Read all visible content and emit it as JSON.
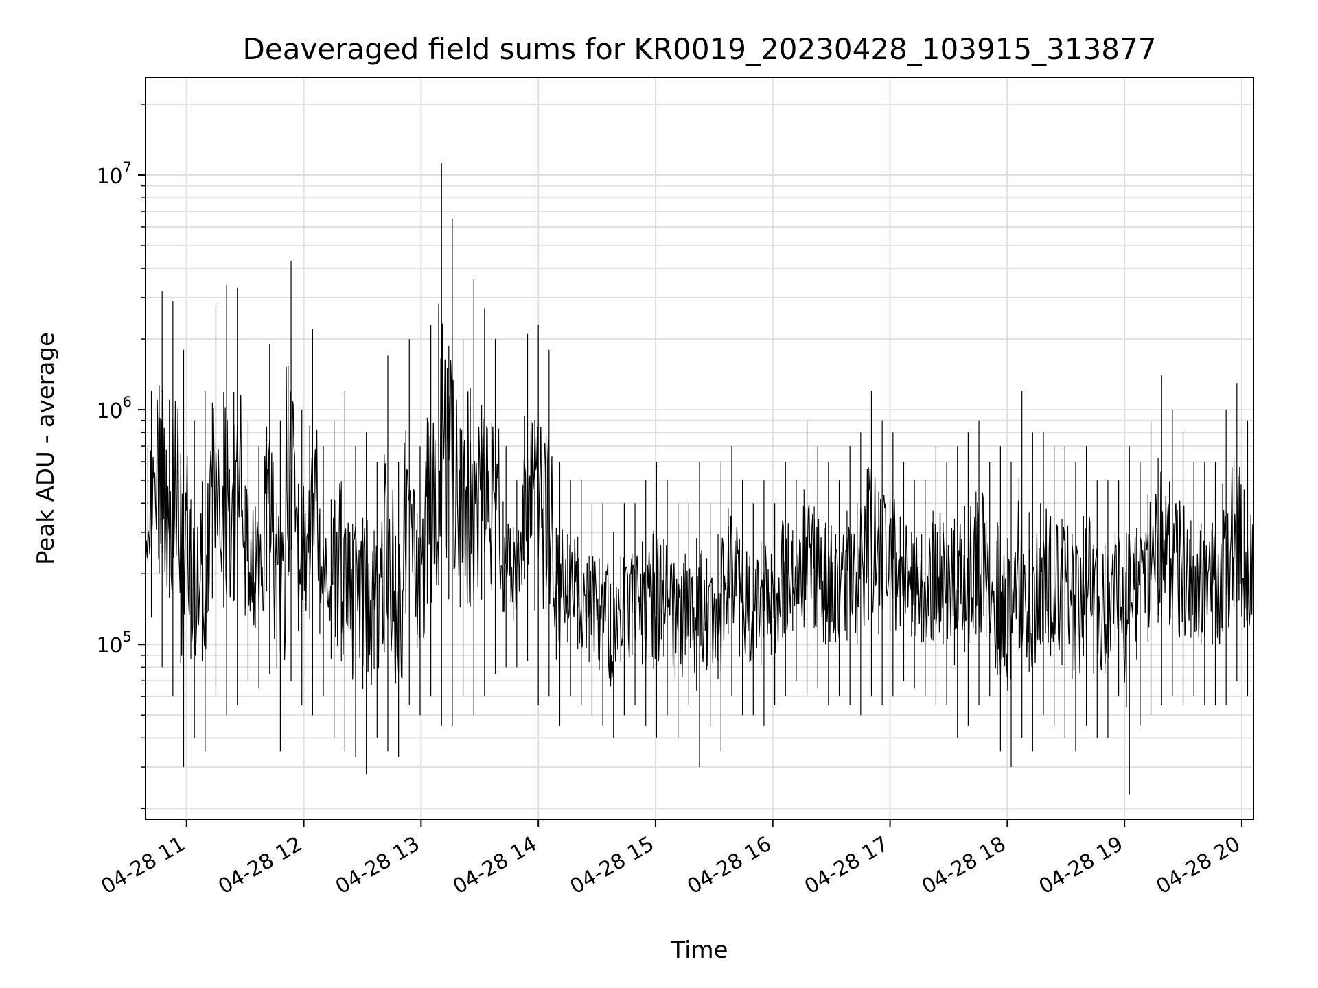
{
  "chart_data": {
    "type": "line",
    "title": "Deaveraged field sums for KR0019_20230428_103915_313877",
    "xlabel": "Time",
    "ylabel": "Peak ADU - average",
    "y_scale": "log",
    "ylim": [
      18000,
      26000000
    ],
    "xlim": [
      "2023-04-28 10:39",
      "2023-04-28 20:06"
    ],
    "grid": true,
    "line_color": "#000000",
    "grid_color": "#e0e0e0",
    "x_ticks": [
      {
        "time": "2023-04-28 11:00",
        "label": "04-28 11"
      },
      {
        "time": "2023-04-28 12:00",
        "label": "04-28 12"
      },
      {
        "time": "2023-04-28 13:00",
        "label": "04-28 13"
      },
      {
        "time": "2023-04-28 14:00",
        "label": "04-28 14"
      },
      {
        "time": "2023-04-28 15:00",
        "label": "04-28 15"
      },
      {
        "time": "2023-04-28 16:00",
        "label": "04-28 16"
      },
      {
        "time": "2023-04-28 17:00",
        "label": "04-28 17"
      },
      {
        "time": "2023-04-28 18:00",
        "label": "04-28 18"
      },
      {
        "time": "2023-04-28 19:00",
        "label": "04-28 19"
      },
      {
        "time": "2023-04-28 20:00",
        "label": "04-28 20"
      }
    ],
    "y_ticks": [
      {
        "value": 100000,
        "base": "10",
        "exp": "5"
      },
      {
        "value": 1000000,
        "base": "10",
        "exp": "6"
      },
      {
        "value": 10000000,
        "base": "10",
        "exp": "7"
      }
    ],
    "series": [
      {
        "x": [
          "2023-04-28 10:39",
          "2023-04-28 10:45",
          "2023-04-28 10:50",
          "2023-04-28 10:56",
          "2023-04-28 11:01",
          "2023-04-28 11:07",
          "2023-04-28 11:12",
          "2023-04-28 11:18",
          "2023-04-28 11:23",
          "2023-04-28 11:29",
          "2023-04-28 11:34",
          "2023-04-28 11:40",
          "2023-04-28 11:45",
          "2023-04-28 11:51",
          "2023-04-28 11:56",
          "2023-04-28 12:02",
          "2023-04-28 12:07",
          "2023-04-28 12:13",
          "2023-04-28 12:18",
          "2023-04-28 12:24",
          "2023-04-28 12:29",
          "2023-04-28 12:35",
          "2023-04-28 12:40",
          "2023-04-28 12:46",
          "2023-04-28 12:51",
          "2023-04-28 12:57",
          "2023-04-28 13:02",
          "2023-04-28 13:08",
          "2023-04-28 13:13",
          "2023-04-28 13:19",
          "2023-04-28 13:24",
          "2023-04-28 13:30",
          "2023-04-28 13:35",
          "2023-04-28 13:41",
          "2023-04-28 13:46",
          "2023-04-28 13:52",
          "2023-04-28 13:57",
          "2023-04-28 14:03",
          "2023-04-28 14:08",
          "2023-04-28 14:14",
          "2023-04-28 14:19",
          "2023-04-28 14:25",
          "2023-04-28 14:30",
          "2023-04-28 14:36",
          "2023-04-28 14:41",
          "2023-04-28 14:47",
          "2023-04-28 14:52",
          "2023-04-28 14:58",
          "2023-04-28 15:03",
          "2023-04-28 15:09",
          "2023-04-28 15:14",
          "2023-04-28 15:20",
          "2023-04-28 15:25",
          "2023-04-28 15:31",
          "2023-04-28 15:36",
          "2023-04-28 15:42",
          "2023-04-28 15:47",
          "2023-04-28 15:53",
          "2023-04-28 15:58",
          "2023-04-28 16:04",
          "2023-04-28 16:09",
          "2023-04-28 16:15",
          "2023-04-28 16:20",
          "2023-04-28 16:26",
          "2023-04-28 16:31",
          "2023-04-28 16:37",
          "2023-04-28 16:42",
          "2023-04-28 16:48",
          "2023-04-28 16:53",
          "2023-04-28 16:59",
          "2023-04-28 17:04",
          "2023-04-28 17:10",
          "2023-04-28 17:15",
          "2023-04-28 17:21",
          "2023-04-28 17:26",
          "2023-04-28 17:32",
          "2023-04-28 17:37",
          "2023-04-28 17:43",
          "2023-04-28 17:48",
          "2023-04-28 17:54",
          "2023-04-28 17:59",
          "2023-04-28 18:05",
          "2023-04-28 18:10",
          "2023-04-28 18:16",
          "2023-04-28 18:21",
          "2023-04-28 18:27",
          "2023-04-28 18:32",
          "2023-04-28 18:38",
          "2023-04-28 18:43",
          "2023-04-28 18:49",
          "2023-04-28 18:54",
          "2023-04-28 19:00",
          "2023-04-28 19:05",
          "2023-04-28 19:11",
          "2023-04-28 19:16",
          "2023-04-28 19:22",
          "2023-04-28 19:27",
          "2023-04-28 19:33",
          "2023-04-28 19:38",
          "2023-04-28 19:44",
          "2023-04-28 19:49",
          "2023-04-28 19:55",
          "2023-04-28 20:00",
          "2023-04-28 20:06"
        ],
        "y_max": [
          1200000,
          3200000,
          2900000,
          1800000,
          900000,
          1200000,
          2800000,
          3400000,
          3300000,
          900000,
          700000,
          1900000,
          900000,
          4300000,
          1000000,
          2200000,
          700000,
          900000,
          1200000,
          700000,
          800000,
          600000,
          1700000,
          600000,
          2000000,
          700000,
          2300000,
          11200000,
          6500000,
          2000000,
          3600000,
          2700000,
          2000000,
          700000,
          500000,
          2100000,
          2300000,
          1800000,
          600000,
          500000,
          500000,
          400000,
          400000,
          300000,
          400000,
          400000,
          500000,
          600000,
          500000,
          400000,
          400000,
          600000,
          400000,
          600000,
          700000,
          500000,
          400000,
          500000,
          400000,
          600000,
          500000,
          900000,
          700000,
          600000,
          500000,
          700000,
          800000,
          1200000,
          900000,
          800000,
          600000,
          500000,
          500000,
          700000,
          600000,
          700000,
          800000,
          900000,
          600000,
          700000,
          600000,
          1200000,
          800000,
          800000,
          700000,
          700000,
          600000,
          700000,
          500000,
          500000,
          500000,
          700000,
          600000,
          900000,
          1400000,
          1000000,
          800000,
          600000,
          600000,
          600000,
          1000000,
          1300000,
          900000,
          800000
        ],
        "y_min": [
          130000,
          80000,
          60000,
          30000,
          40000,
          35000,
          60000,
          50000,
          55000,
          70000,
          65000,
          75000,
          35000,
          70000,
          55000,
          50000,
          60000,
          40000,
          35000,
          33000,
          28000,
          40000,
          35000,
          33000,
          55000,
          50000,
          60000,
          45000,
          45000,
          60000,
          50000,
          60000,
          75000,
          80000,
          80000,
          85000,
          55000,
          60000,
          45000,
          60000,
          55000,
          50000,
          45000,
          40000,
          50000,
          55000,
          45000,
          40000,
          50000,
          40000,
          55000,
          30000,
          45000,
          35000,
          60000,
          50000,
          50000,
          45000,
          55000,
          60000,
          70000,
          60000,
          65000,
          55000,
          60000,
          55000,
          50000,
          60000,
          55000,
          60000,
          70000,
          65000,
          60000,
          55000,
          55000,
          40000,
          45000,
          55000,
          60000,
          35000,
          30000,
          40000,
          35000,
          50000,
          45000,
          40000,
          35000,
          45000,
          40000,
          40000,
          60000,
          23000,
          45000,
          50000,
          55000,
          60000,
          55000,
          60000,
          55000,
          55000,
          55000,
          70000,
          60000,
          100000
        ]
      }
    ]
  }
}
